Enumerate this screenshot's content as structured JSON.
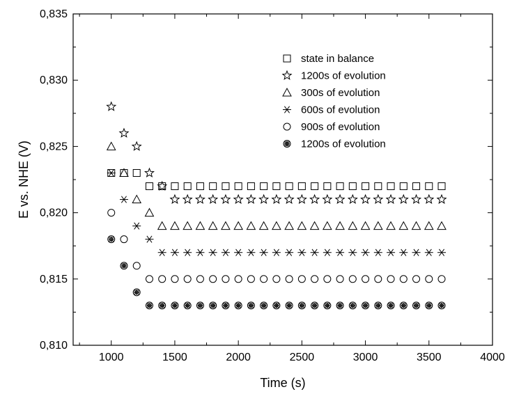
{
  "chart_data": {
    "type": "scatter",
    "title": "",
    "xlabel": "Time (s)",
    "ylabel": "E vs. NHE (V)",
    "xlim": [
      700,
      4000
    ],
    "ylim": [
      0.81,
      0.835
    ],
    "x_ticks": [
      1000,
      1500,
      2000,
      2500,
      3000,
      3500,
      4000
    ],
    "x_tick_labels": [
      "1000",
      "1500",
      "2000",
      "2500",
      "3000",
      "3500",
      "4000"
    ],
    "y_ticks": [
      0.81,
      0.815,
      0.82,
      0.825,
      0.83,
      0.835
    ],
    "y_tick_labels": [
      "0,810",
      "0,815",
      "0,820",
      "0,825",
      "0,830",
      "0,835"
    ],
    "grid": false,
    "legend_position": "top-right",
    "x": [
      1000,
      1100,
      1200,
      1300,
      1400,
      1500,
      1600,
      1700,
      1800,
      1900,
      2000,
      2100,
      2200,
      2300,
      2400,
      2500,
      2600,
      2700,
      2800,
      2900,
      3000,
      3100,
      3200,
      3300,
      3400,
      3500,
      3600
    ],
    "series": [
      {
        "name": "state in balance",
        "marker": "square",
        "values": [
          0.823,
          0.823,
          0.823,
          0.822,
          0.822,
          0.822,
          0.822,
          0.822,
          0.822,
          0.822,
          0.822,
          0.822,
          0.822,
          0.822,
          0.822,
          0.822,
          0.822,
          0.822,
          0.822,
          0.822,
          0.822,
          0.822,
          0.822,
          0.822,
          0.822,
          0.822,
          0.822
        ]
      },
      {
        "name": "1200s of evolution",
        "marker": "star",
        "values": [
          0.828,
          0.826,
          0.825,
          0.823,
          0.822,
          0.821,
          0.821,
          0.821,
          0.821,
          0.821,
          0.821,
          0.821,
          0.821,
          0.821,
          0.821,
          0.821,
          0.821,
          0.821,
          0.821,
          0.821,
          0.821,
          0.821,
          0.821,
          0.821,
          0.821,
          0.821,
          0.821
        ]
      },
      {
        "name": "300s of evolution",
        "marker": "triangle",
        "values": [
          0.825,
          0.823,
          0.821,
          0.82,
          0.819,
          0.819,
          0.819,
          0.819,
          0.819,
          0.819,
          0.819,
          0.819,
          0.819,
          0.819,
          0.819,
          0.819,
          0.819,
          0.819,
          0.819,
          0.819,
          0.819,
          0.819,
          0.819,
          0.819,
          0.819,
          0.819,
          0.819
        ]
      },
      {
        "name": "600s of evolution",
        "marker": "asterisk",
        "values": [
          0.823,
          0.821,
          0.819,
          0.818,
          0.817,
          0.817,
          0.817,
          0.817,
          0.817,
          0.817,
          0.817,
          0.817,
          0.817,
          0.817,
          0.817,
          0.817,
          0.817,
          0.817,
          0.817,
          0.817,
          0.817,
          0.817,
          0.817,
          0.817,
          0.817,
          0.817,
          0.817
        ]
      },
      {
        "name": "900s of evolution",
        "marker": "circle",
        "values": [
          0.82,
          0.818,
          0.816,
          0.815,
          0.815,
          0.815,
          0.815,
          0.815,
          0.815,
          0.815,
          0.815,
          0.815,
          0.815,
          0.815,
          0.815,
          0.815,
          0.815,
          0.815,
          0.815,
          0.815,
          0.815,
          0.815,
          0.815,
          0.815,
          0.815,
          0.815,
          0.815
        ]
      },
      {
        "name": "1200s of evolution",
        "marker": "crossed-circle",
        "values": [
          0.818,
          0.816,
          0.814,
          0.813,
          0.813,
          0.813,
          0.813,
          0.813,
          0.813,
          0.813,
          0.813,
          0.813,
          0.813,
          0.813,
          0.813,
          0.813,
          0.813,
          0.813,
          0.813,
          0.813,
          0.813,
          0.813,
          0.813,
          0.813,
          0.813,
          0.813,
          0.813
        ]
      }
    ]
  }
}
